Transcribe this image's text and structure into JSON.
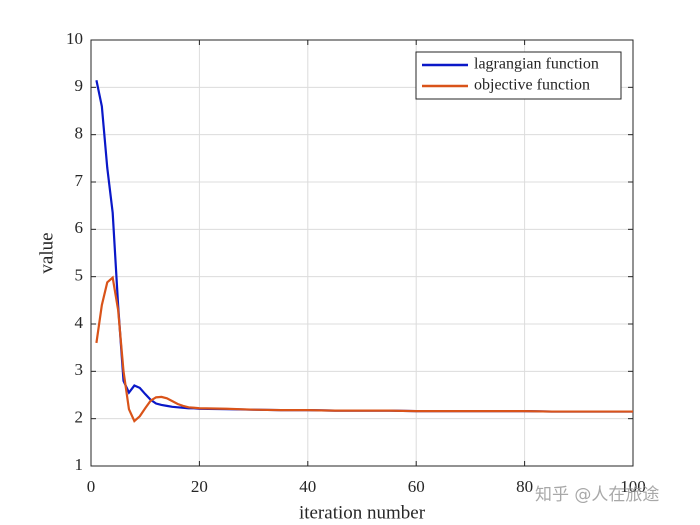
{
  "chart_data": {
    "type": "line",
    "xlabel": "iteration number",
    "ylabel": "value",
    "x": [
      1,
      2,
      3,
      4,
      5,
      6,
      7,
      8,
      9,
      10,
      11,
      12,
      13,
      14,
      15,
      16,
      17,
      18,
      19,
      20,
      25,
      30,
      35,
      40,
      45,
      50,
      55,
      60,
      65,
      70,
      75,
      80,
      85,
      90,
      95,
      100
    ],
    "series": [
      {
        "name": "lagrangian function",
        "color": "#0a18c8",
        "values": [
          9.15,
          8.6,
          7.3,
          6.35,
          4.4,
          2.8,
          2.55,
          2.7,
          2.65,
          2.52,
          2.4,
          2.32,
          2.29,
          2.27,
          2.25,
          2.24,
          2.23,
          2.22,
          2.22,
          2.21,
          2.2,
          2.19,
          2.18,
          2.18,
          2.17,
          2.17,
          2.17,
          2.16,
          2.16,
          2.16,
          2.16,
          2.16,
          2.15,
          2.15,
          2.15,
          2.15
        ]
      },
      {
        "name": "objective function",
        "color": "#d95319",
        "values": [
          3.6,
          4.4,
          4.88,
          4.98,
          4.3,
          3.0,
          2.2,
          1.95,
          2.05,
          2.22,
          2.38,
          2.45,
          2.46,
          2.43,
          2.37,
          2.31,
          2.27,
          2.24,
          2.23,
          2.22,
          2.21,
          2.19,
          2.18,
          2.18,
          2.17,
          2.17,
          2.17,
          2.16,
          2.16,
          2.16,
          2.16,
          2.16,
          2.15,
          2.15,
          2.15,
          2.15
        ]
      }
    ],
    "xlim": [
      0,
      100
    ],
    "xticks": [
      0,
      20,
      40,
      60,
      80,
      100
    ],
    "ylim": [
      1,
      10
    ],
    "yticks": [
      1,
      2,
      3,
      4,
      5,
      6,
      7,
      8,
      9,
      10
    ],
    "grid": true,
    "legend": "upper right"
  },
  "watermark": "知乎 @人在旅途"
}
